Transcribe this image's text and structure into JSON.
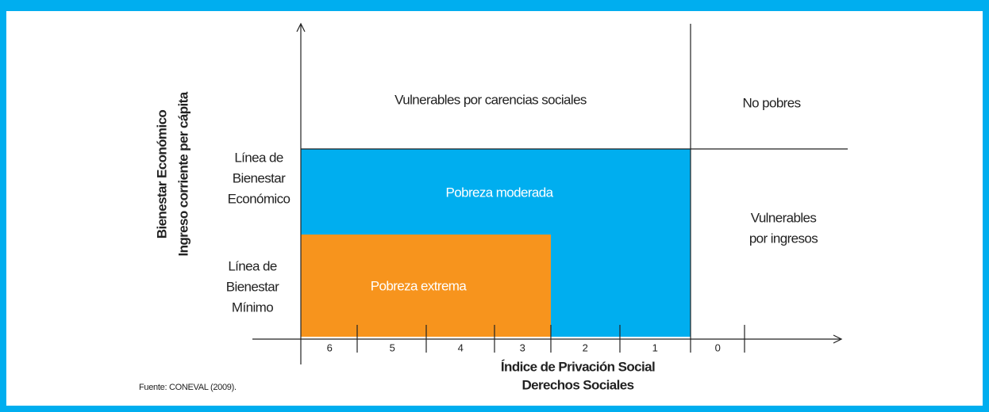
{
  "regions": {
    "vulnerable_social": "Vulnerables por carencias sociales",
    "non_poor": "No pobres",
    "moderate_poverty": "Pobreza moderada",
    "vulnerable_income": [
      "Vulnerables",
      "por ingresos"
    ],
    "extreme_poverty": "Pobreza extrema"
  },
  "y_axis": {
    "title": [
      "Bienestar Económico",
      "Ingreso corriente per cápita"
    ],
    "economic_line": [
      "Línea de",
      "Bienestar",
      "Económico"
    ],
    "minimum_line": [
      "Línea de",
      "Bienestar",
      "Mínimo"
    ]
  },
  "x_axis": {
    "title": [
      "Índice de Privación Social",
      "Derechos Sociales"
    ],
    "ticks": [
      6,
      5,
      4,
      3,
      2,
      1,
      0
    ]
  },
  "source": "Fuente: CONEVAL (2009)."
}
